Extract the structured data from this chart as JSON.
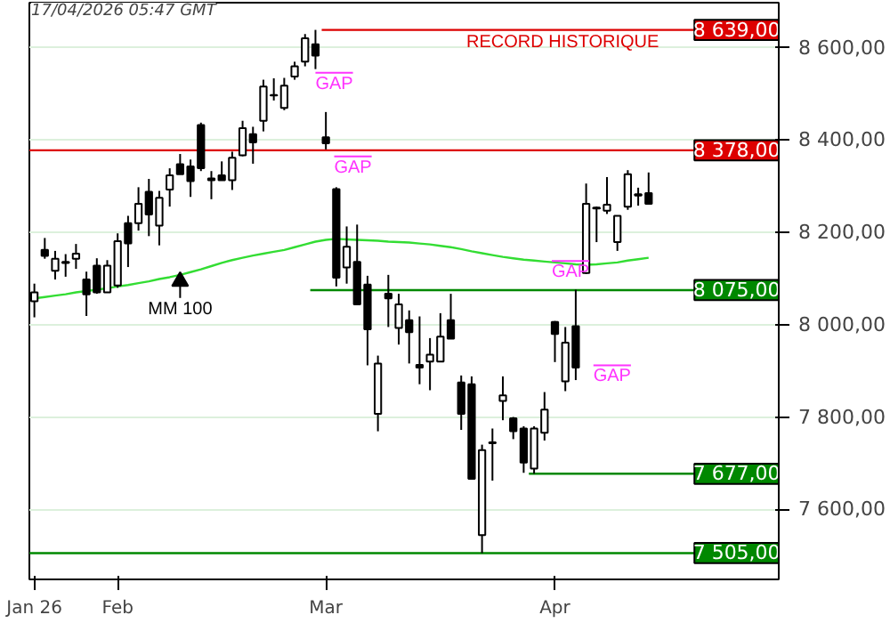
{
  "chart_data": {
    "type": "candlestick",
    "title": "17/04/2026 05:47 GMT",
    "categories": [
      "Jan 26",
      null,
      null,
      null,
      null,
      null,
      null,
      null,
      "Feb",
      null,
      null,
      null,
      null,
      null,
      null,
      null,
      null,
      null,
      null,
      null,
      null,
      null,
      null,
      null,
      null,
      null,
      null,
      null,
      "Mar",
      null,
      null,
      null,
      null,
      null,
      null,
      null,
      null,
      null,
      null,
      null,
      null,
      null,
      null,
      null,
      null,
      null,
      null,
      null,
      null,
      null,
      "Apr",
      null,
      null,
      null,
      null,
      null,
      null,
      null,
      null,
      null
    ],
    "ohlc": [
      [
        8051,
        8089,
        8016,
        8070
      ],
      [
        8162,
        8188,
        8143,
        8149
      ],
      [
        8117,
        8160,
        8098,
        8143
      ],
      [
        8134,
        8153,
        8104,
        8136
      ],
      [
        8143,
        8175,
        8121,
        8154
      ],
      [
        8098,
        8115,
        8019,
        8066
      ],
      [
        8128,
        8144,
        8067,
        8070
      ],
      [
        8070,
        8140,
        8070,
        8128
      ],
      [
        8085,
        8198,
        8080,
        8181
      ],
      [
        8220,
        8236,
        8125,
        8176
      ],
      [
        8220,
        8298,
        8204,
        8262
      ],
      [
        8288,
        8316,
        8192,
        8239
      ],
      [
        8215,
        8290,
        8172,
        8275
      ],
      [
        8293,
        8339,
        8256,
        8324
      ],
      [
        8348,
        8370,
        8326,
        8326
      ],
      [
        8343,
        8358,
        8277,
        8311
      ],
      [
        8433,
        8438,
        8333,
        8339
      ],
      [
        8317,
        8333,
        8272,
        8313
      ],
      [
        8324,
        8354,
        8313,
        8313
      ],
      [
        8313,
        8375,
        8292,
        8362
      ],
      [
        8367,
        8442,
        8365,
        8426
      ],
      [
        8413,
        8429,
        8349,
        8395
      ],
      [
        8442,
        8531,
        8419,
        8516
      ],
      [
        8497,
        8534,
        8486,
        8498
      ],
      [
        8470,
        8535,
        8465,
        8518
      ],
      [
        8538,
        8570,
        8531,
        8560
      ],
      [
        8570,
        8630,
        8560,
        8621
      ],
      [
        8608,
        8639,
        8554,
        8583
      ],
      [
        8406,
        8461,
        8380,
        8393
      ],
      [
        8294,
        8298,
        8083,
        8102
      ],
      [
        8124,
        8213,
        8089,
        8169
      ],
      [
        8136,
        8217,
        8044,
        8044
      ],
      [
        8087,
        8106,
        7912,
        7990
      ],
      [
        7807,
        7933,
        7769,
        7916
      ],
      [
        8067,
        8108,
        7995,
        8057
      ],
      [
        7993,
        8067,
        7957,
        8044
      ],
      [
        8010,
        8031,
        7916,
        7984
      ],
      [
        7913,
        8018,
        7871,
        7907
      ],
      [
        7920,
        7971,
        7858,
        7935
      ],
      [
        7920,
        8025,
        7920,
        7974
      ],
      [
        8010,
        8067,
        7970,
        7970
      ],
      [
        7875,
        7890,
        7772,
        7807
      ],
      [
        7871,
        7888,
        7666,
        7666
      ],
      [
        7544,
        7740,
        7505,
        7728
      ],
      [
        7743,
        7775,
        7662,
        7745
      ],
      [
        7835,
        7888,
        7793,
        7847
      ],
      [
        7797,
        7800,
        7752,
        7769
      ],
      [
        7775,
        7780,
        7679,
        7701
      ],
      [
        7688,
        7780,
        7677,
        7775
      ],
      [
        7766,
        7854,
        7749,
        7816
      ],
      [
        8006,
        8008,
        7919,
        7980
      ],
      [
        7877,
        7995,
        7856,
        7961
      ],
      [
        7997,
        8076,
        7880,
        7907
      ],
      [
        8112,
        8306,
        8110,
        8262
      ],
      [
        8252,
        8256,
        8179,
        8254
      ],
      [
        8247,
        8320,
        8240,
        8260
      ],
      [
        8179,
        8236,
        8160,
        8236
      ],
      [
        8256,
        8335,
        8249,
        8326
      ],
      [
        8280,
        8297,
        8258,
        8283
      ],
      [
        8285,
        8330,
        8262,
        8262
      ]
    ],
    "series": [
      {
        "name": "MM 100",
        "type": "line",
        "color": "#33dd33",
        "values": [
          8057,
          8060,
          8063,
          8066,
          8070,
          8073,
          8076,
          8079,
          8083,
          8086,
          8090,
          8094,
          8099,
          8103,
          8108,
          8114,
          8120,
          8127,
          8134,
          8140,
          8145,
          8150,
          8154,
          8158,
          8162,
          8168,
          8174,
          8180,
          8184,
          8186,
          8185,
          8184,
          8183,
          8182,
          8180,
          8179,
          8178,
          8176,
          8174,
          8171,
          8168,
          8164,
          8159,
          8155,
          8151,
          8147,
          8144,
          8141,
          8139,
          8137,
          8135,
          8133,
          8131,
          8130,
          8131,
          8133,
          8135,
          8139,
          8142,
          8145
        ]
      }
    ],
    "ylim": [
      7448,
      8698
    ],
    "yticks": [
      {
        "value": 7600,
        "label": "7 600,00"
      },
      {
        "value": 7800,
        "label": "7 800,00"
      },
      {
        "value": 8000,
        "label": "8 000,00"
      },
      {
        "value": 8200,
        "label": "8 200,00"
      },
      {
        "value": 8400,
        "label": "8 400,00"
      },
      {
        "value": 8600,
        "label": "8 600,00"
      }
    ],
    "ref_lines": [
      {
        "axis": "y",
        "value": 8639,
        "label": "8 639,00",
        "color": "#dd0000"
      },
      {
        "axis": "y",
        "value": 8378,
        "label": "8 378,00",
        "color": "#dd0000"
      },
      {
        "axis": "y",
        "value": 8075,
        "label": "8 075,00",
        "color": "#008800"
      },
      {
        "axis": "y",
        "value": 7677,
        "label": "7 677,00",
        "color": "#008800"
      },
      {
        "axis": "y",
        "value": 7505,
        "label": "7 505,00",
        "color": "#008800"
      }
    ],
    "annotations": [
      "RECORD HISTORIQUE",
      "GAP",
      "GAP",
      "GAP",
      "GAP"
    ],
    "grid": "y"
  }
}
